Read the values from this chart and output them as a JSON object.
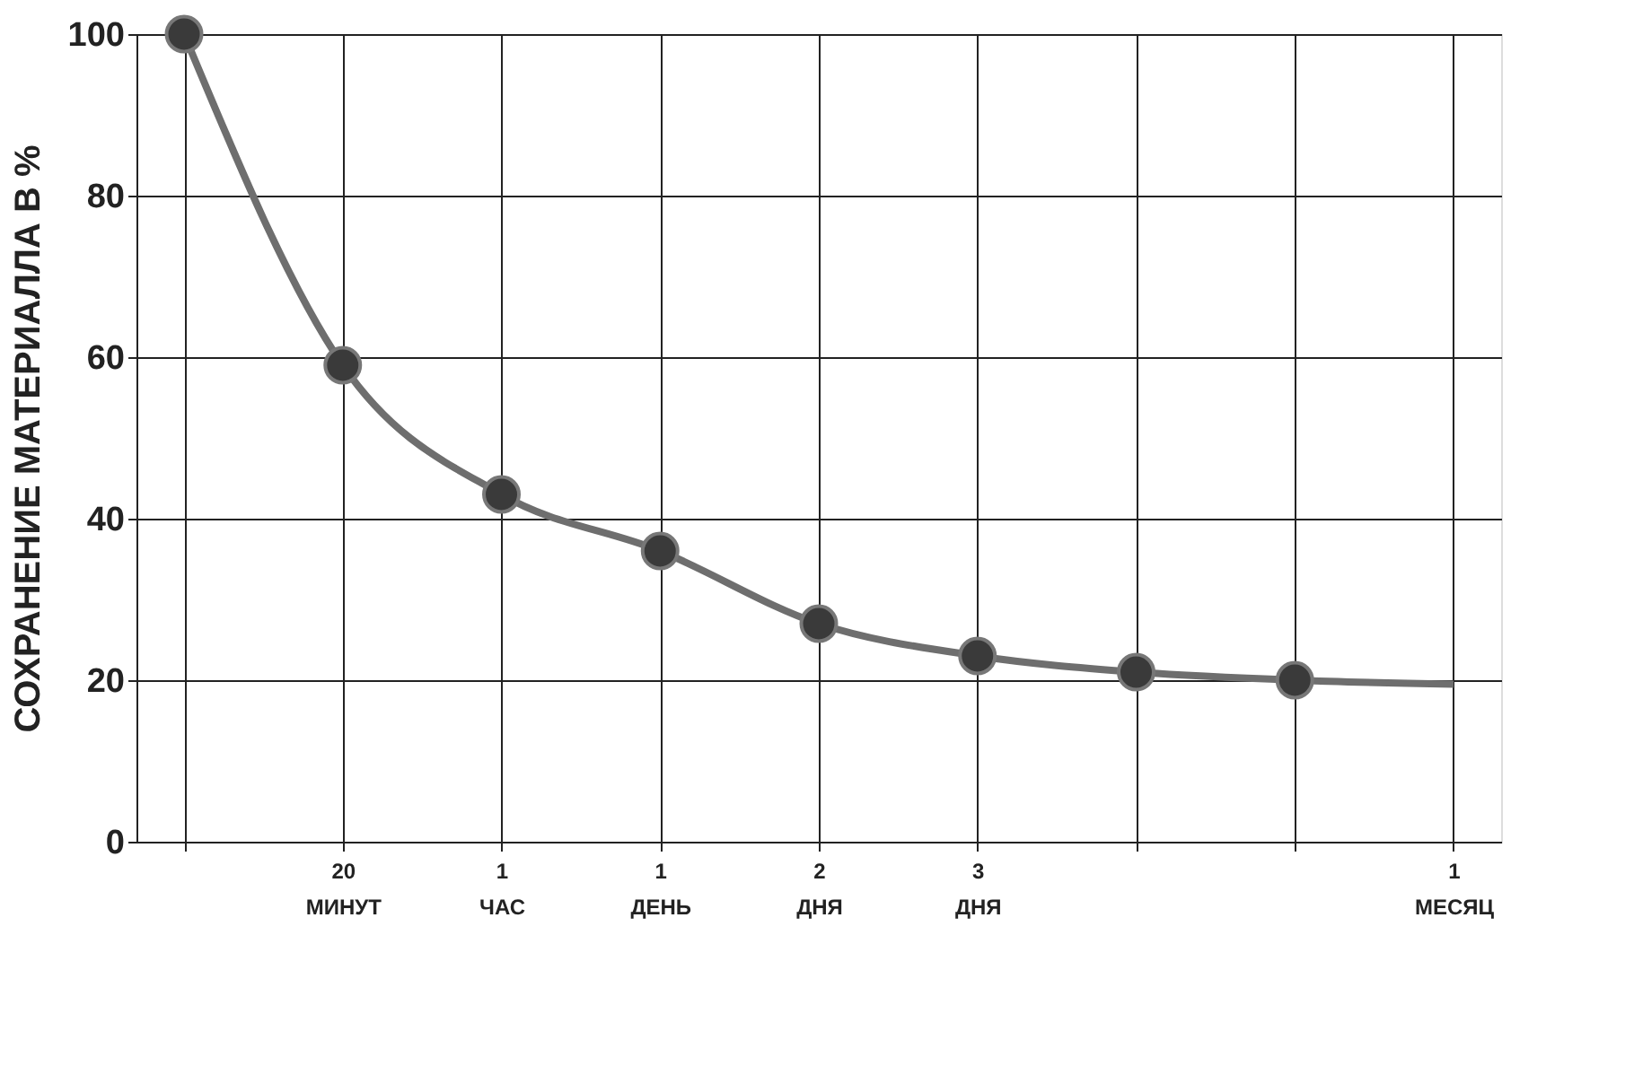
{
  "chart_data": {
    "type": "line",
    "ylabel": "СОХРАНЕНИЕ МАТЕРИАЛЛА В %",
    "categories": [
      null,
      "20 МИНУТ",
      "1 ЧАС",
      "1 ДЕНЬ",
      "2 ДНЯ",
      "3 ДНЯ",
      null,
      null,
      "1 МЕСЯЦ"
    ],
    "series": [
      {
        "color": "#6e6e6e",
        "values": [
          100,
          59,
          43,
          36,
          27,
          23,
          21,
          20,
          19.5
        ],
        "marker": "none"
      },
      {
        "type": "scatter",
        "color": "#3a3a3a",
        "values": [
          100,
          59,
          43,
          36,
          27,
          23,
          21,
          20,
          null
        ],
        "marker": "circle"
      }
    ],
    "ylim": [
      0,
      100
    ],
    "yticks": [
      0,
      20,
      40,
      60,
      80,
      100
    ],
    "grid": true
  }
}
